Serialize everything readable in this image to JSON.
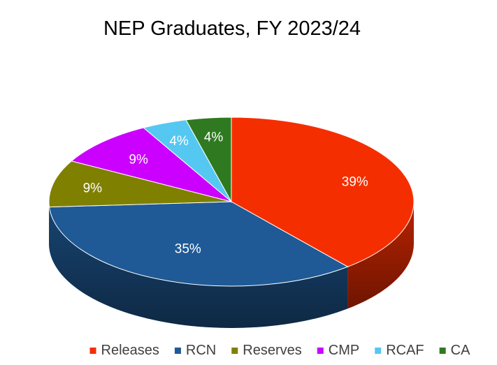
{
  "chart_data": {
    "type": "pie",
    "style": "3d",
    "title": "NEP Graduates, FY 2023/24",
    "categories": [
      "Releases",
      "RCN",
      "Reserves",
      "CMP",
      "RCAF",
      "CA"
    ],
    "values": [
      39,
      35,
      9,
      9,
      4,
      4
    ],
    "labels": [
      "39%",
      "35%",
      "9%",
      "9%",
      "4%",
      "4%"
    ],
    "colors": [
      "#f52e00",
      "#1f5a96",
      "#808000",
      "#cc00ff",
      "#55c8f2",
      "#2f7a21"
    ],
    "legend_position": "bottom"
  }
}
